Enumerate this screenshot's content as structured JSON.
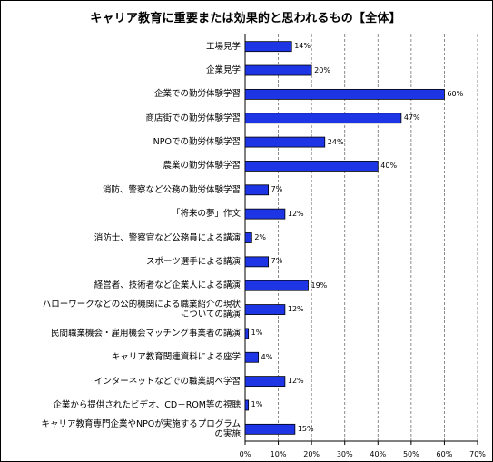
{
  "chart_data": {
    "type": "bar",
    "orientation": "horizontal",
    "title": "キャリア教育に重要または効果的と思われるもの【全体】",
    "xlim": [
      0,
      70
    ],
    "x_ticks": [
      "0%",
      "10%",
      "20%",
      "30%",
      "40%",
      "50%",
      "60%",
      "70%"
    ],
    "grid": "vertical dashed",
    "bar_color": "#1e35e6",
    "categories": [
      "工場見学",
      "企業見学",
      "企業での勤労体験学習",
      "商店街での勤労体験学習",
      "NPOでの勤労体験学習",
      "農業の勤労体験学習",
      "消防、警察など公務の勤労体験学習",
      "「将来の夢」作文",
      "消防士、警察官など公務員による講演",
      "スポーツ選手による講演",
      "経営者、技術者など企業人による講演",
      "ハローワークなどの公的機関による職業紹介の現状\nについての講演",
      "民間職業機会・雇用機会マッチング事業者の講演",
      "キャリア教育関連資料による座学",
      "インターネットなどでの職業調べ学習",
      "企業から提供されたビデオ、CD－ROM等の視聴",
      "キャリア教育専門企業やNPOが実施するプログラム\nの実施"
    ],
    "values": [
      14,
      20,
      60,
      47,
      24,
      40,
      7,
      12,
      2,
      7,
      19,
      12,
      1,
      4,
      12,
      1,
      15
    ],
    "value_labels": [
      "14%",
      "20%",
      "60%",
      "47%",
      "24%",
      "40%",
      "7%",
      "12%",
      "2%",
      "7%",
      "19%",
      "12%",
      "1%",
      "4%",
      "12%",
      "1%",
      "15%"
    ]
  }
}
